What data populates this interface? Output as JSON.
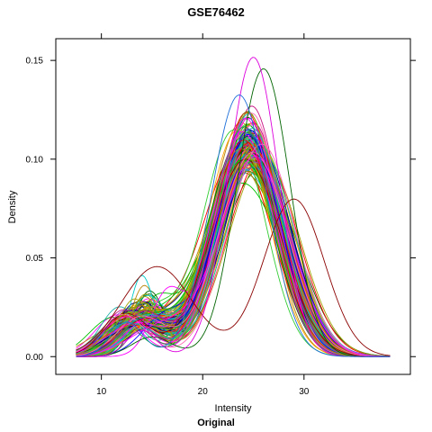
{
  "chart_data": {
    "type": "line",
    "title": "GSE76462",
    "xlabel": "Intensity",
    "ylabel": "Density",
    "sublabel": "Original",
    "xlim": [
      5.5,
      40.5
    ],
    "ylim": [
      -0.009,
      0.161
    ],
    "x_ticks": [
      10,
      20,
      30
    ],
    "y_ticks": [
      0.0,
      0.05,
      0.1,
      0.15
    ],
    "y_tick_labels": [
      "0.00",
      "0.05",
      "0.10",
      "0.15"
    ],
    "grid": false,
    "legend": "none",
    "series_count": 180,
    "typical_density": {
      "components": [
        {
          "weight": 0.12,
          "mean": 14.0,
          "sd": 2.4
        },
        {
          "weight": 0.88,
          "mean": 24.6,
          "sd": 3.3
        }
      ]
    },
    "notable_series": [
      {
        "label_hint": "wide-right-hump",
        "color": "#8b0000",
        "components": [
          {
            "weight": 0.4,
            "mean": 15.5,
            "sd": 3.5
          },
          {
            "weight": 0.6,
            "mean": 29.0,
            "sd": 3.0
          }
        ]
      },
      {
        "label_hint": "tallest-narrow",
        "color": "#006400",
        "components": [
          {
            "weight": 0.95,
            "mean": 26.0,
            "sd": 2.6
          },
          {
            "weight": 0.05,
            "mean": 15.0,
            "sd": 2.0
          }
        ]
      },
      {
        "label_hint": "magenta-sharp",
        "color": "#dd00dd",
        "components": [
          {
            "weight": 0.95,
            "mean": 25.0,
            "sd": 2.5
          },
          {
            "weight": 0.05,
            "mean": 14.0,
            "sd": 1.5
          }
        ]
      },
      {
        "label_hint": "blue-left",
        "color": "#1e6fd9",
        "components": [
          {
            "weight": 0.93,
            "mean": 23.6,
            "sd": 2.8
          },
          {
            "weight": 0.07,
            "mean": 12.5,
            "sd": 1.6
          }
        ]
      }
    ]
  }
}
